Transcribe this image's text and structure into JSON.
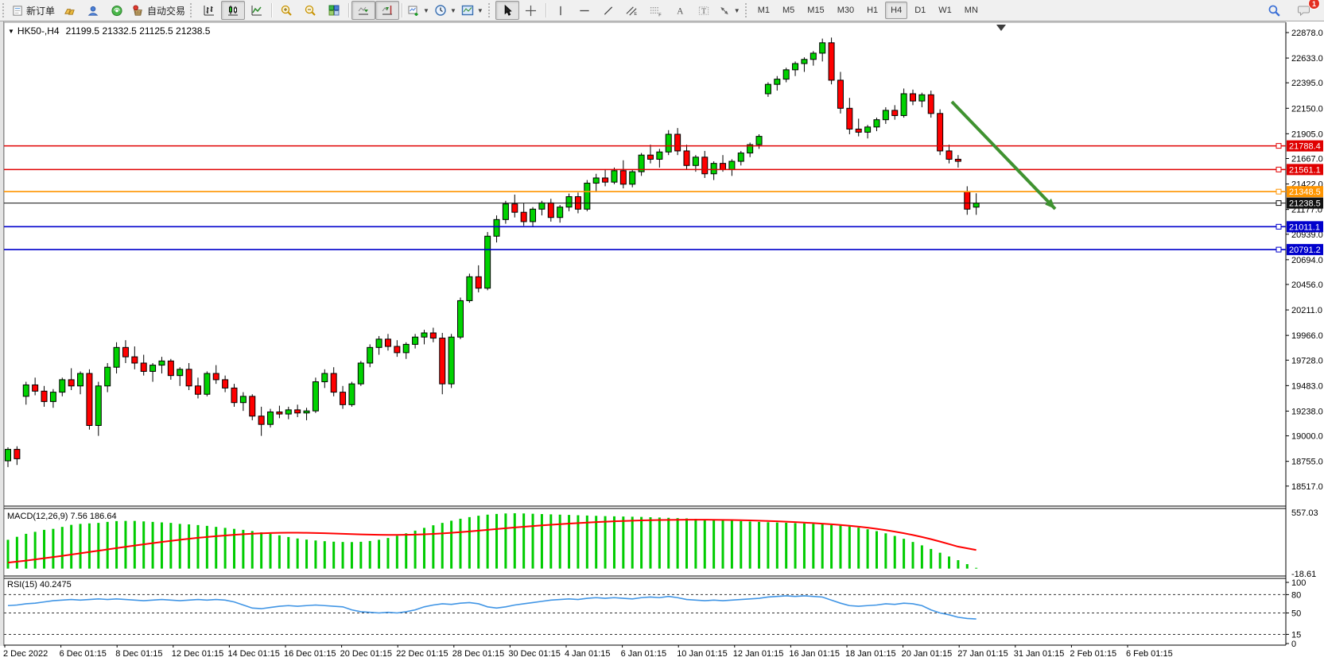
{
  "toolbar": {
    "new_order_label": "新订单",
    "auto_trading_label": "自动交易",
    "timeframes": [
      "M1",
      "M5",
      "M15",
      "M30",
      "H1",
      "H4",
      "D1",
      "W1",
      "MN"
    ],
    "active_timeframe": "H4",
    "notification_badge": "1",
    "icons": [
      "new-order-icon",
      "deposit-gold-icon",
      "community-user-icon",
      "signals-icon",
      "auto-trading-icon",
      "bar-chart-icon",
      "candlestick-chart-icon",
      "line-chart-icon",
      "zoom-in-icon",
      "zoom-out-icon",
      "tile-windows-icon",
      "auto-scroll-icon",
      "chart-shift-icon",
      "new-chart-icon",
      "periods-clock-icon",
      "templates-icon",
      "cursor-icon",
      "crosshair-icon",
      "vertical-line-icon",
      "horizontal-line-icon",
      "trendline-icon",
      "equidistant-channel-icon",
      "fibonacci-icon",
      "text-icon",
      "text-label-icon",
      "arrows-icon",
      "search-icon",
      "chat-icon"
    ]
  },
  "chart": {
    "title": {
      "symbol_period": "HK50-,H4",
      "open": "21199.5",
      "high": "21332.5",
      "low": "21125.5",
      "close": "21238.5"
    },
    "macd_label": "MACD(12,26,9) 7.56 186.64",
    "rsi_label": "RSI(15) 40.2475"
  },
  "chart_data": {
    "type": "candlestick",
    "symbol": "HK50-",
    "period": "H4",
    "colors": {
      "up": "#00d200",
      "down": "#ff0000",
      "outline": "#000000",
      "macd_hist": "#00cc00",
      "macd_signal": "#ff0000",
      "rsi_line": "#4095e5",
      "arrow": "#3f9230"
    },
    "price_axis_ticks": [
      "22878.0",
      "22633.0",
      "22395.0",
      "22150.0",
      "21905.0",
      "21667.0",
      "21422.0",
      "21177.0",
      "20939.0",
      "20694.0",
      "20456.0",
      "20211.0",
      "19966.0",
      "19728.0",
      "19483.0",
      "19238.0",
      "19000.0",
      "18755.0",
      "18517.0"
    ],
    "levels": [
      {
        "price": 21788.4,
        "label": "21788.4",
        "color": "#e00000"
      },
      {
        "price": 21561.1,
        "label": "21561.1",
        "color": "#e00000"
      },
      {
        "price": 21348.5,
        "label": "21348.5",
        "color": "#ff9500"
      },
      {
        "price": 21238.5,
        "label": "21238.5",
        "color": "#111111"
      },
      {
        "price": 21011.1,
        "label": "21011.1",
        "color": "#0000cc"
      },
      {
        "price": 20791.2,
        "label": "20791.2",
        "color": "#0000cc"
      }
    ],
    "current_price": "21238.5",
    "candles": [
      [
        18760,
        18890,
        18700,
        18870
      ],
      [
        18870,
        18900,
        18720,
        18780
      ],
      [
        19380,
        19520,
        19300,
        19490
      ],
      [
        19490,
        19560,
        19390,
        19430
      ],
      [
        19430,
        19480,
        19280,
        19330
      ],
      [
        19330,
        19450,
        19270,
        19420
      ],
      [
        19420,
        19560,
        19380,
        19540
      ],
      [
        19540,
        19650,
        19440,
        19480
      ],
      [
        19480,
        19620,
        19400,
        19600
      ],
      [
        19600,
        19640,
        19060,
        19100
      ],
      [
        19100,
        19520,
        19000,
        19480
      ],
      [
        19480,
        19700,
        19420,
        19660
      ],
      [
        19660,
        19900,
        19600,
        19850
      ],
      [
        19850,
        19920,
        19700,
        19760
      ],
      [
        19760,
        19860,
        19640,
        19700
      ],
      [
        19700,
        19780,
        19580,
        19620
      ],
      [
        19620,
        19700,
        19520,
        19680
      ],
      [
        19680,
        19760,
        19600,
        19720
      ],
      [
        19720,
        19740,
        19540,
        19580
      ],
      [
        19580,
        19660,
        19480,
        19640
      ],
      [
        19640,
        19700,
        19440,
        19480
      ],
      [
        19480,
        19560,
        19360,
        19400
      ],
      [
        19400,
        19620,
        19380,
        19600
      ],
      [
        19600,
        19680,
        19500,
        19540
      ],
      [
        19540,
        19580,
        19420,
        19460
      ],
      [
        19460,
        19500,
        19280,
        19320
      ],
      [
        19320,
        19420,
        19240,
        19380
      ],
      [
        19380,
        19400,
        19150,
        19190
      ],
      [
        19190,
        19280,
        19000,
        19110
      ],
      [
        19110,
        19260,
        19080,
        19230
      ],
      [
        19230,
        19290,
        19170,
        19210
      ],
      [
        19210,
        19280,
        19160,
        19250
      ],
      [
        19250,
        19300,
        19180,
        19220
      ],
      [
        19220,
        19270,
        19150,
        19240
      ],
      [
        19240,
        19560,
        19220,
        19520
      ],
      [
        19520,
        19640,
        19460,
        19600
      ],
      [
        19600,
        19660,
        19380,
        19420
      ],
      [
        19420,
        19480,
        19260,
        19300
      ],
      [
        19300,
        19520,
        19280,
        19500
      ],
      [
        19500,
        19720,
        19480,
        19700
      ],
      [
        19700,
        19880,
        19660,
        19850
      ],
      [
        19850,
        19960,
        19780,
        19930
      ],
      [
        19930,
        19980,
        19820,
        19860
      ],
      [
        19860,
        19920,
        19760,
        19800
      ],
      [
        19800,
        19900,
        19740,
        19880
      ],
      [
        19880,
        19980,
        19840,
        19950
      ],
      [
        19950,
        20020,
        19880,
        19990
      ],
      [
        19990,
        20040,
        19900,
        19940
      ],
      [
        19940,
        19990,
        19400,
        19500
      ],
      [
        19500,
        19980,
        19460,
        19950
      ],
      [
        19950,
        20330,
        19930,
        20300
      ],
      [
        20300,
        20560,
        20280,
        20530
      ],
      [
        20530,
        20640,
        20380,
        20420
      ],
      [
        20420,
        20960,
        20400,
        20920
      ],
      [
        20920,
        21120,
        20860,
        21080
      ],
      [
        21080,
        21260,
        21040,
        21230
      ],
      [
        21230,
        21320,
        21100,
        21150
      ],
      [
        21150,
        21240,
        21020,
        21060
      ],
      [
        21060,
        21200,
        21010,
        21180
      ],
      [
        21180,
        21260,
        21120,
        21240
      ],
      [
        21240,
        21280,
        21060,
        21100
      ],
      [
        21100,
        21220,
        21050,
        21200
      ],
      [
        21200,
        21330,
        21160,
        21300
      ],
      [
        21300,
        21340,
        21140,
        21180
      ],
      [
        21180,
        21460,
        21160,
        21430
      ],
      [
        21430,
        21520,
        21350,
        21480
      ],
      [
        21480,
        21560,
        21400,
        21440
      ],
      [
        21440,
        21580,
        21420,
        21550
      ],
      [
        21550,
        21650,
        21380,
        21420
      ],
      [
        21420,
        21560,
        21390,
        21540
      ],
      [
        21540,
        21720,
        21500,
        21700
      ],
      [
        21700,
        21800,
        21620,
        21660
      ],
      [
        21660,
        21760,
        21580,
        21730
      ],
      [
        21730,
        21940,
        21700,
        21900
      ],
      [
        21900,
        21960,
        21700,
        21740
      ],
      [
        21740,
        21800,
        21560,
        21600
      ],
      [
        21600,
        21700,
        21540,
        21680
      ],
      [
        21680,
        21740,
        21480,
        21520
      ],
      [
        21520,
        21640,
        21460,
        21620
      ],
      [
        21620,
        21700,
        21540,
        21560
      ],
      [
        21560,
        21660,
        21500,
        21640
      ],
      [
        21640,
        21740,
        21600,
        21720
      ],
      [
        21720,
        21820,
        21680,
        21800
      ],
      [
        21800,
        21900,
        21760,
        21880
      ],
      [
        22290,
        22400,
        22260,
        22380
      ],
      [
        22380,
        22460,
        22320,
        22430
      ],
      [
        22430,
        22540,
        22400,
        22520
      ],
      [
        22520,
        22600,
        22460,
        22580
      ],
      [
        22580,
        22640,
        22500,
        22620
      ],
      [
        22620,
        22700,
        22560,
        22680
      ],
      [
        22680,
        22820,
        22600,
        22780
      ],
      [
        22780,
        22830,
        22380,
        22420
      ],
      [
        22420,
        22500,
        22100,
        22150
      ],
      [
        22150,
        22250,
        21900,
        21950
      ],
      [
        21950,
        22050,
        21880,
        21920
      ],
      [
        21920,
        21990,
        21860,
        21970
      ],
      [
        21970,
        22060,
        21930,
        22040
      ],
      [
        22040,
        22160,
        22000,
        22130
      ],
      [
        22130,
        22180,
        22040,
        22080
      ],
      [
        22080,
        22340,
        22060,
        22290
      ],
      [
        22290,
        22330,
        22180,
        22220
      ],
      [
        22220,
        22300,
        22160,
        22280
      ],
      [
        22280,
        22320,
        22060,
        22100
      ],
      [
        22100,
        22140,
        21700,
        21740
      ],
      [
        21740,
        21800,
        21620,
        21660
      ],
      [
        21660,
        21700,
        21580,
        21640
      ],
      [
        21350,
        21400,
        21126,
        21180
      ],
      [
        21199.5,
        21332.5,
        21125.5,
        21238.5
      ]
    ],
    "macd": {
      "label": "MACD(12,26,9)",
      "current_main": 7.56,
      "current_signal": 186.64,
      "max": 557.03,
      "min": -18.61,
      "max_label": "557.03",
      "min_label": "-18.61",
      "histogram": [
        290,
        320,
        350,
        370,
        390,
        400,
        420,
        440,
        450,
        455,
        460,
        470,
        478,
        480,
        480,
        475,
        470,
        465,
        460,
        450,
        445,
        438,
        430,
        420,
        410,
        400,
        390,
        378,
        365,
        350,
        335,
        318,
        303,
        292,
        283,
        276,
        271,
        268,
        267,
        270,
        278,
        290,
        308,
        330,
        355,
        382,
        410,
        436,
        460,
        482,
        502,
        518,
        532,
        543,
        550,
        555,
        557,
        555,
        552,
        549,
        546,
        543,
        540,
        537,
        534,
        531,
        528,
        526,
        524,
        522,
        520,
        517,
        514,
        511,
        508,
        505,
        501,
        497,
        492,
        487,
        482,
        478,
        474,
        470,
        467,
        464,
        461,
        458,
        455,
        450,
        445,
        439,
        432,
        424,
        412,
        396,
        377,
        355,
        329,
        300,
        268,
        234,
        198,
        160,
        122,
        85,
        45,
        8
      ],
      "signal": [
        60,
        70,
        80,
        92,
        104,
        116,
        128,
        141,
        154,
        167,
        180,
        193,
        206,
        219,
        232,
        244,
        256,
        268,
        279,
        290,
        300,
        310,
        318,
        326,
        333,
        340,
        346,
        351,
        355,
        358,
        360,
        361,
        361,
        360,
        358,
        356,
        353,
        350,
        347,
        344,
        342,
        340,
        339,
        339,
        340,
        342,
        345,
        349,
        354,
        360,
        367,
        374,
        382,
        390,
        398,
        406,
        414,
        421,
        428,
        435,
        441,
        447,
        453,
        458,
        463,
        468,
        472,
        476,
        479,
        482,
        485,
        487,
        489,
        490,
        491,
        492,
        492,
        492,
        491,
        490,
        489,
        487,
        485,
        482,
        479,
        476,
        472,
        468,
        463,
        458,
        452,
        446,
        439,
        431,
        422,
        412,
        400,
        387,
        372,
        356,
        338,
        318,
        296,
        272,
        247,
        221,
        204,
        187
      ]
    },
    "rsi": {
      "label": "RSI(15)",
      "current": 40.2475,
      "axis_labels": [
        "100",
        "80",
        "50",
        "15",
        "0"
      ],
      "dashed_levels": [
        80,
        50,
        15
      ],
      "values": [
        62,
        63,
        65,
        66,
        68,
        70,
        71,
        72,
        71,
        72,
        73,
        72,
        73,
        72,
        71,
        70,
        71,
        72,
        71,
        70,
        71,
        72,
        71,
        72,
        71,
        68,
        63,
        58,
        57,
        59,
        61,
        62,
        61,
        62,
        63,
        62,
        61,
        60,
        55,
        52,
        51,
        50,
        51,
        50,
        52,
        55,
        60,
        63,
        65,
        64,
        66,
        67,
        65,
        60,
        58,
        60,
        63,
        65,
        67,
        69,
        71,
        72,
        73,
        72,
        74,
        75,
        74,
        75,
        74,
        73,
        75,
        76,
        75,
        77,
        75,
        72,
        71,
        70,
        71,
        70,
        71,
        72,
        73,
        74,
        76,
        77,
        78,
        77,
        78,
        77,
        76,
        71,
        66,
        62,
        61,
        62,
        63,
        65,
        64,
        66,
        65,
        62,
        55,
        50,
        47,
        43,
        41,
        40.2
      ]
    },
    "time_axis": [
      "2 Dec 2022",
      "6 Dec 01:15",
      "8 Dec 01:15",
      "12 Dec 01:15",
      "14 Dec 01:15",
      "16 Dec 01:15",
      "20 Dec 01:15",
      "22 Dec 01:15",
      "28 Dec 01:15",
      "30 Dec 01:15",
      "4 Jan 01:15",
      "6 Jan 01:15",
      "10 Jan 01:15",
      "12 Jan 01:15",
      "16 Jan 01:15",
      "18 Jan 01:15",
      "20 Jan 01:15",
      "27 Jan 01:15",
      "31 Jan 01:15",
      "2 Feb 01:15",
      "6 Feb 01:15"
    ],
    "annotation_arrow": {
      "from": [
        1197,
        128
      ],
      "to": [
        1327,
        263
      ]
    }
  }
}
